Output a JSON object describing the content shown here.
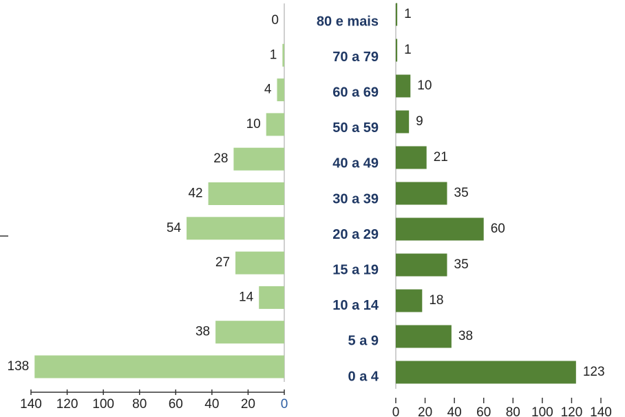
{
  "chart_data": [
    {
      "type": "bar",
      "orientation": "horizontal",
      "categories": [
        "80 e mais",
        "70 a 79",
        "60 a 69",
        "50 a 59",
        "40 a 49",
        "30 a 39",
        "20 a 29",
        "15 a 19",
        "10 a 14",
        "5 a 9",
        "0 a 4"
      ],
      "values": [
        0,
        1,
        4,
        10,
        28,
        42,
        54,
        27,
        14,
        38,
        138
      ],
      "color": "#a9d18e",
      "xlim": [
        140,
        0
      ],
      "xticks": [
        140,
        120,
        100,
        80,
        60,
        40,
        20,
        0
      ]
    },
    {
      "type": "bar",
      "orientation": "horizontal",
      "values": [
        1,
        1,
        10,
        9,
        21,
        35,
        60,
        35,
        18,
        38,
        123
      ],
      "color": "#548235",
      "xlim": [
        0,
        140
      ],
      "xticks": [
        0,
        20,
        40,
        60,
        80,
        100,
        120,
        140
      ]
    }
  ]
}
